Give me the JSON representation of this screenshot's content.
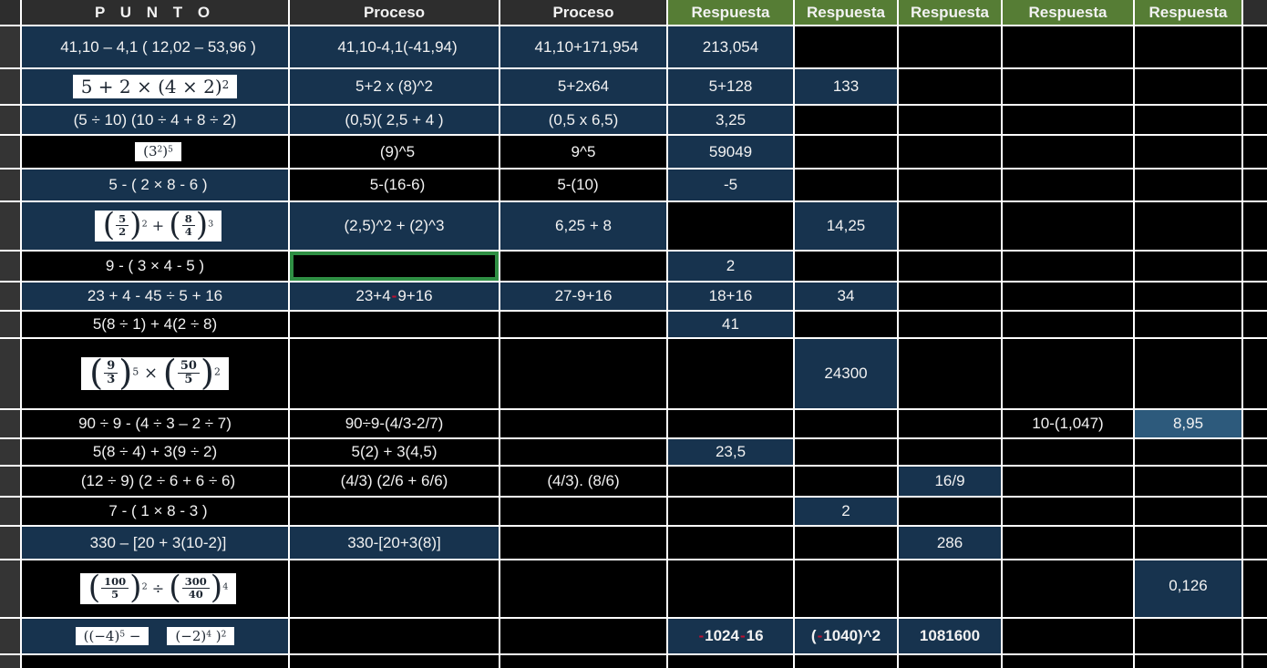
{
  "header": {
    "punto": "P U N T O",
    "proceso1": "Proceso",
    "proceso2": "Proceso",
    "respuesta": "Respuesta"
  },
  "colors": {
    "cell_navy": "#17334e",
    "cell_black": "#000000",
    "header_green": "#567d35",
    "header_gray": "#2d2d2d",
    "selection_green": "#2f8f44",
    "accent_red": "#c01031",
    "answer_steel_blue": "#2d5a7c",
    "gridline": "#ffffff"
  },
  "rows": {
    "r1": {
      "punto": "41,10 – 4,1 ( 12,02 – 53,96 )",
      "p1": "41,10-4,1(-41,94)",
      "p2": "41,10+171,954",
      "resp1": "213,054"
    },
    "r2": {
      "eq_base": "5 + 2 × (4 × 2)",
      "eq_sup": "2",
      "p1": "5+2 x (8)^2",
      "p2": "5+2x64",
      "resp1": "5+128",
      "resp2": "133"
    },
    "r3": {
      "punto": "(5 ÷ 10) (10 ÷ 4 + 8 ÷ 2)",
      "p1": "(0,5)( 2,5 + 4 )",
      "p2": "(0,5 x 6,5)",
      "resp1": "3,25"
    },
    "r4": {
      "eq_p1": "(3",
      "eq_s1": "2",
      "eq_p2": ")",
      "eq_s2": "5",
      "p1": "(9)^5",
      "p2": "9^5",
      "resp1": "59049"
    },
    "r5": {
      "punto": "5 - ( 2 × 8 - 6 )",
      "p1": "5-(16-6)",
      "p2": "5-(10)",
      "resp1": "-5"
    },
    "r6": {
      "lp": "(",
      "f1n": "5",
      "f1d": "2",
      "rp": ")",
      "s1": "2",
      "op": "+",
      "f2n": "8",
      "f2d": "4",
      "s2": "3",
      "p1": "(2,5)^2 + (2)^3",
      "p2": "6,25 + 8",
      "resp2": "14,25"
    },
    "r7": {
      "punto": "9 - ( 3 × 4 - 5 )",
      "resp1": "2"
    },
    "r8": {
      "punto": "23 + 4 - 45 ÷ 5 + 16",
      "p1_pre": "23+4 ",
      "p1_red": "-",
      "p1_post": "9+16",
      "p2": "27-9+16",
      "resp1": "18+16",
      "resp2": "34"
    },
    "r9": {
      "punto": "5(8 ÷ 1) + 4(2 ÷ 8)",
      "resp1": "41"
    },
    "r10": {
      "lp": "(",
      "f1n": "9",
      "f1d": "3",
      "rp": ")",
      "s1": "5",
      "op": "×",
      "f2n": "50",
      "f2d": "5",
      "s2": "2",
      "resp2": "24300"
    },
    "r11": {
      "punto": "90 ÷ 9 - (4 ÷ 3 – 2 ÷ 7)",
      "p1": "90÷9-(4/3-2/7)",
      "resp4": "10-(1,047)",
      "resp5": "8,95"
    },
    "r12": {
      "punto": "5(8 ÷ 4) + 3(9 ÷ 2)",
      "p1": "5(2) + 3(4,5)",
      "resp1": "23,5"
    },
    "r13": {
      "punto": "(12 ÷ 9) (2 ÷ 6 + 6 ÷ 6)",
      "p1": "(4/3) (2/6 + 6/6)",
      "p2": "(4/3). (8/6)",
      "resp3": "16/9"
    },
    "r14": {
      "punto": "7 - ( 1 × 8 - 3 )",
      "resp2": "2"
    },
    "r15": {
      "punto": "330 – [20 + 3(10-2)]",
      "p1": "330-[20+3(8)]",
      "resp3": "286"
    },
    "r16": {
      "lp": "(",
      "f1n": "100",
      "f1d": "5",
      "rp": ")",
      "s1": "2",
      "op": "÷",
      "f2n": "300",
      "f2d": "40",
      "s2": "4",
      "resp5": "0,126"
    },
    "r17": {
      "eq1_base": "((−4)",
      "eq1_sup": "5",
      "eq1_tail": " −",
      "eq2_base": "(−2)",
      "eq2_sup": "4",
      "eq2_tail": " )",
      "eq2_sup2": "2",
      "r1_red1": "-",
      "r1_t1": "1024",
      "r1_red2": "-",
      "r1_t2": "16",
      "r2_pre": "( ",
      "r2_red": "-",
      "r2_post": "1040)^2",
      "resp3": "1081600"
    }
  }
}
